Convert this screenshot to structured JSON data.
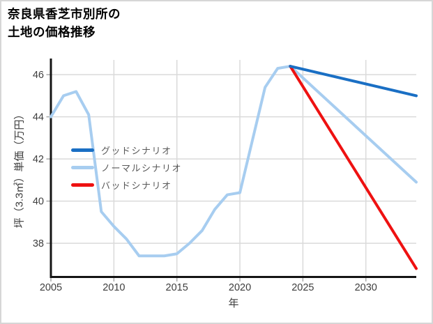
{
  "window": {
    "background": "#ffffff",
    "border_color": "#d6d6d6"
  },
  "title": {
    "line1": "奈良県香芝市別所の",
    "line2": "土地の価格推移"
  },
  "chart_data": {
    "type": "line",
    "title": "奈良県香芝市別所の土地の価格推移",
    "xlabel": "年",
    "ylabel": "坪（3.3㎡）単価（万円）",
    "xlim": [
      2005,
      2034
    ],
    "ylim": [
      36.4,
      46.7
    ],
    "x_ticks": [
      2005,
      2010,
      2015,
      2020,
      2025,
      2030
    ],
    "y_ticks": [
      38,
      40,
      42,
      44,
      46
    ],
    "grid": true,
    "grid_color": "#dadada",
    "axis_color": "#141414",
    "tick_mark_color": "#a8a8a8",
    "tick_label_color": "#3d3d3d",
    "legend": {
      "position": "center-left",
      "entries": [
        {
          "label": "グッドシナリオ",
          "color": "#1a6fc4"
        },
        {
          "label": "ノーマルシナリオ",
          "color": "#a7cdf0"
        },
        {
          "label": "バッドシナリオ",
          "color": "#ee1111"
        }
      ]
    },
    "series": [
      {
        "name": "ノーマルシナリオ",
        "role": "normal",
        "color": "#a7cdf0",
        "x": [
          2005,
          2006,
          2007,
          2008,
          2009,
          2010,
          2011,
          2012,
          2013,
          2014,
          2015,
          2016,
          2017,
          2018,
          2019,
          2020,
          2021,
          2022,
          2023,
          2024,
          2034
        ],
        "values": [
          44.0,
          45.0,
          45.2,
          44.1,
          39.5,
          38.8,
          38.2,
          37.4,
          37.4,
          37.4,
          37.5,
          38.0,
          38.6,
          39.6,
          40.3,
          40.4,
          42.9,
          45.4,
          46.3,
          46.4,
          40.9
        ]
      },
      {
        "name": "バッドシナリオ",
        "role": "bad",
        "color": "#ee1111",
        "x": [
          2024,
          2034
        ],
        "values": [
          46.4,
          36.8
        ]
      },
      {
        "name": "グッドシナリオ",
        "role": "good",
        "color": "#1a6fc4",
        "x": [
          2024,
          2034
        ],
        "values": [
          46.4,
          45.0
        ]
      }
    ]
  }
}
